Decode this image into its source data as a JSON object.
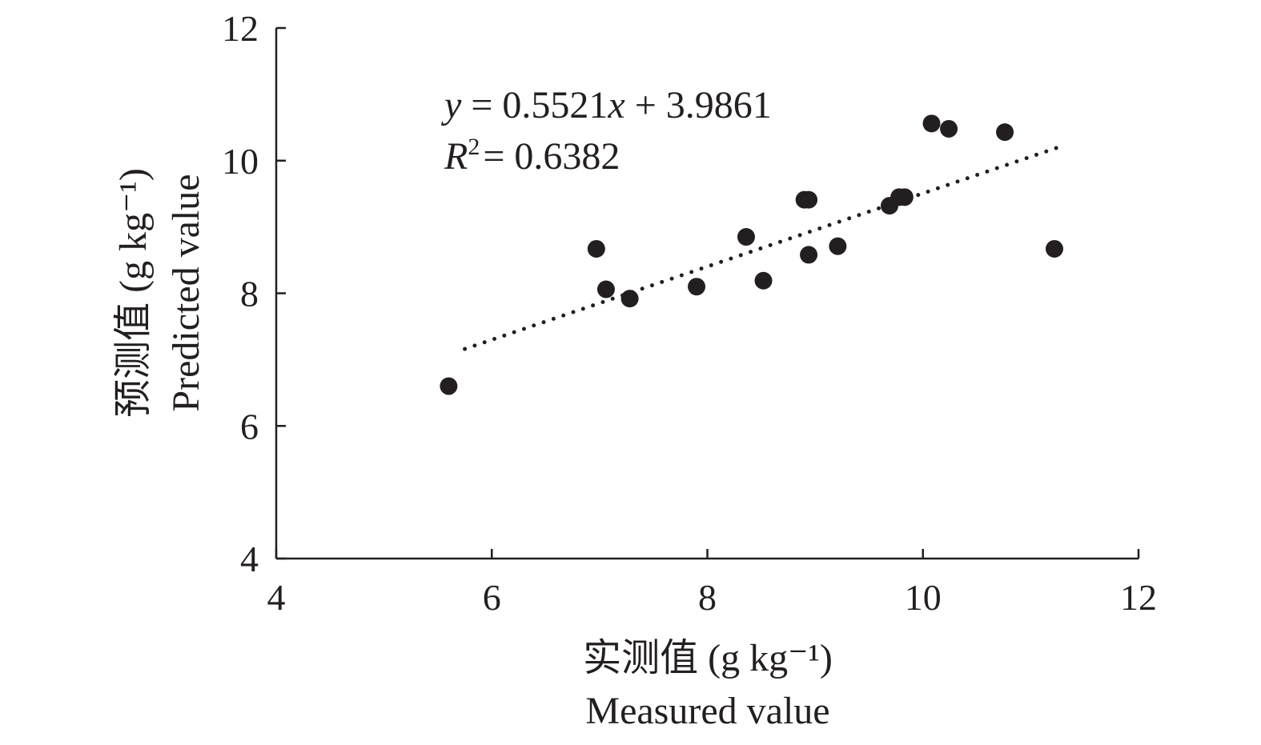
{
  "chart_data": {
    "type": "scatter",
    "title": "",
    "xlabel": "实测值 (g kg⁻¹)",
    "xlabel_en": "Measured value",
    "ylabel": "预测值 (g kg⁻¹)",
    "ylabel_en": "Predicted value",
    "xlim": [
      4,
      12
    ],
    "ylim": [
      4,
      12
    ],
    "xticks": [
      4,
      6,
      8,
      10,
      12
    ],
    "yticks": [
      4,
      6,
      8,
      10,
      12
    ],
    "grid": false,
    "point_color": "#231f20",
    "points": [
      {
        "x": 5.6,
        "y": 6.6
      },
      {
        "x": 6.97,
        "y": 8.67
      },
      {
        "x": 7.06,
        "y": 8.06
      },
      {
        "x": 7.28,
        "y": 7.92
      },
      {
        "x": 7.9,
        "y": 8.1
      },
      {
        "x": 8.36,
        "y": 8.85
      },
      {
        "x": 8.52,
        "y": 8.19
      },
      {
        "x": 8.9,
        "y": 9.41
      },
      {
        "x": 8.94,
        "y": 9.41
      },
      {
        "x": 8.94,
        "y": 8.58
      },
      {
        "x": 9.21,
        "y": 8.71
      },
      {
        "x": 9.69,
        "y": 9.32
      },
      {
        "x": 9.78,
        "y": 9.45
      },
      {
        "x": 9.83,
        "y": 9.45
      },
      {
        "x": 10.08,
        "y": 10.56
      },
      {
        "x": 10.24,
        "y": 10.48
      },
      {
        "x": 10.76,
        "y": 10.43
      },
      {
        "x": 11.22,
        "y": 8.67
      }
    ],
    "trendline": {
      "style": "dotted",
      "slope": 0.5521,
      "intercept": 3.9861,
      "x_range": [
        5.75,
        11.25
      ]
    },
    "annotations": {
      "equation": {
        "y": "y",
        "eq_mid": " = 0.5521",
        "x": "x",
        "eq_tail": " + 3.9861"
      },
      "r2": {
        "r": "R",
        "sup": "2",
        "eq": "= 0.6382"
      }
    }
  }
}
